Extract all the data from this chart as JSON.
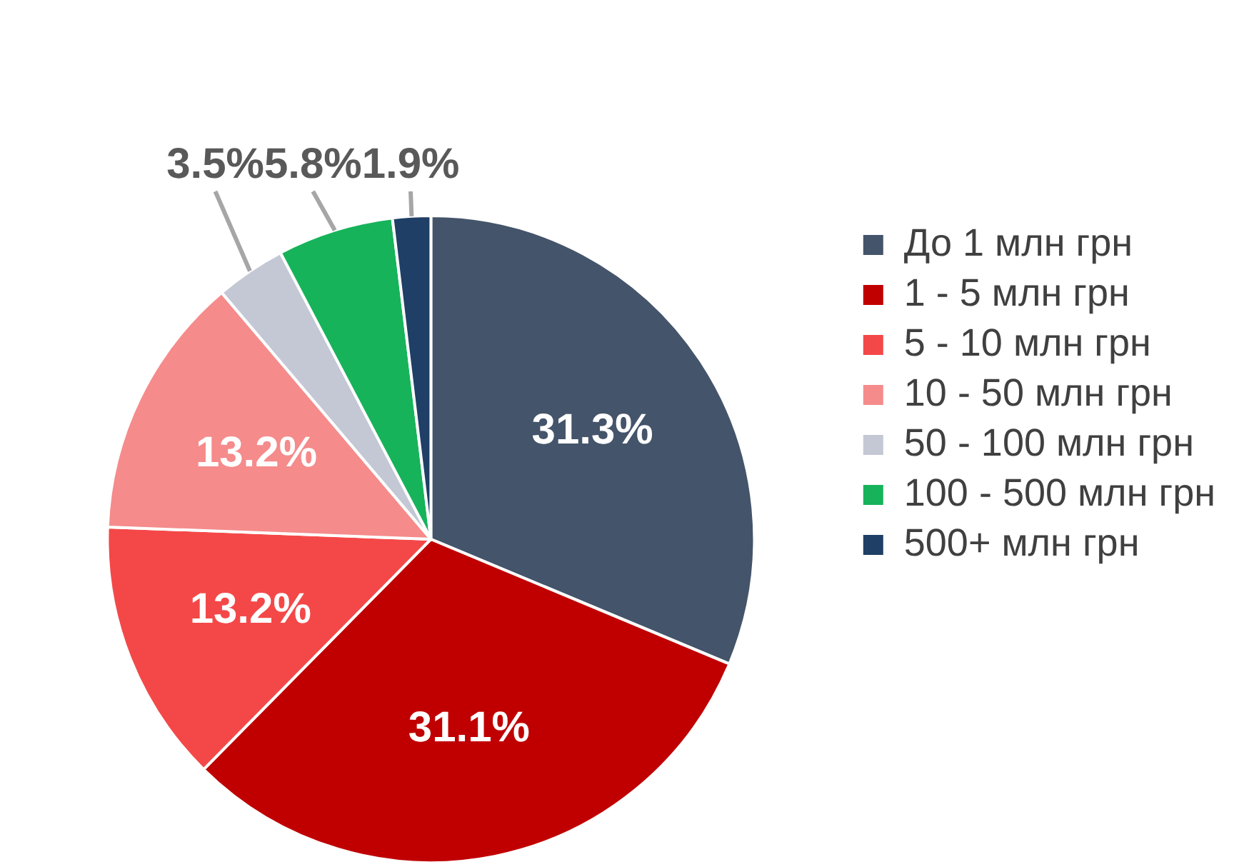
{
  "chart_data": {
    "type": "pie",
    "categories": [
      "До 1 млн грн",
      "1 - 5 млн грн",
      "5 - 10 млн грн",
      "10 - 50 млн грн",
      "50 - 100 млн грн",
      "100 - 500 млн грн",
      "500+ млн грн"
    ],
    "values": [
      31.3,
      31.1,
      13.2,
      13.2,
      3.5,
      5.8,
      1.9
    ],
    "colors": [
      "#44546a",
      "#c00000",
      "#f44848",
      "#f58b8b",
      "#c3c8d4",
      "#17b35a",
      "#1f3f66"
    ],
    "value_labels": [
      "31.3%",
      "31.1%",
      "13.2%",
      "13.2%",
      "3.5%",
      "5.8%",
      "1.9%"
    ],
    "legend": "top right"
  }
}
